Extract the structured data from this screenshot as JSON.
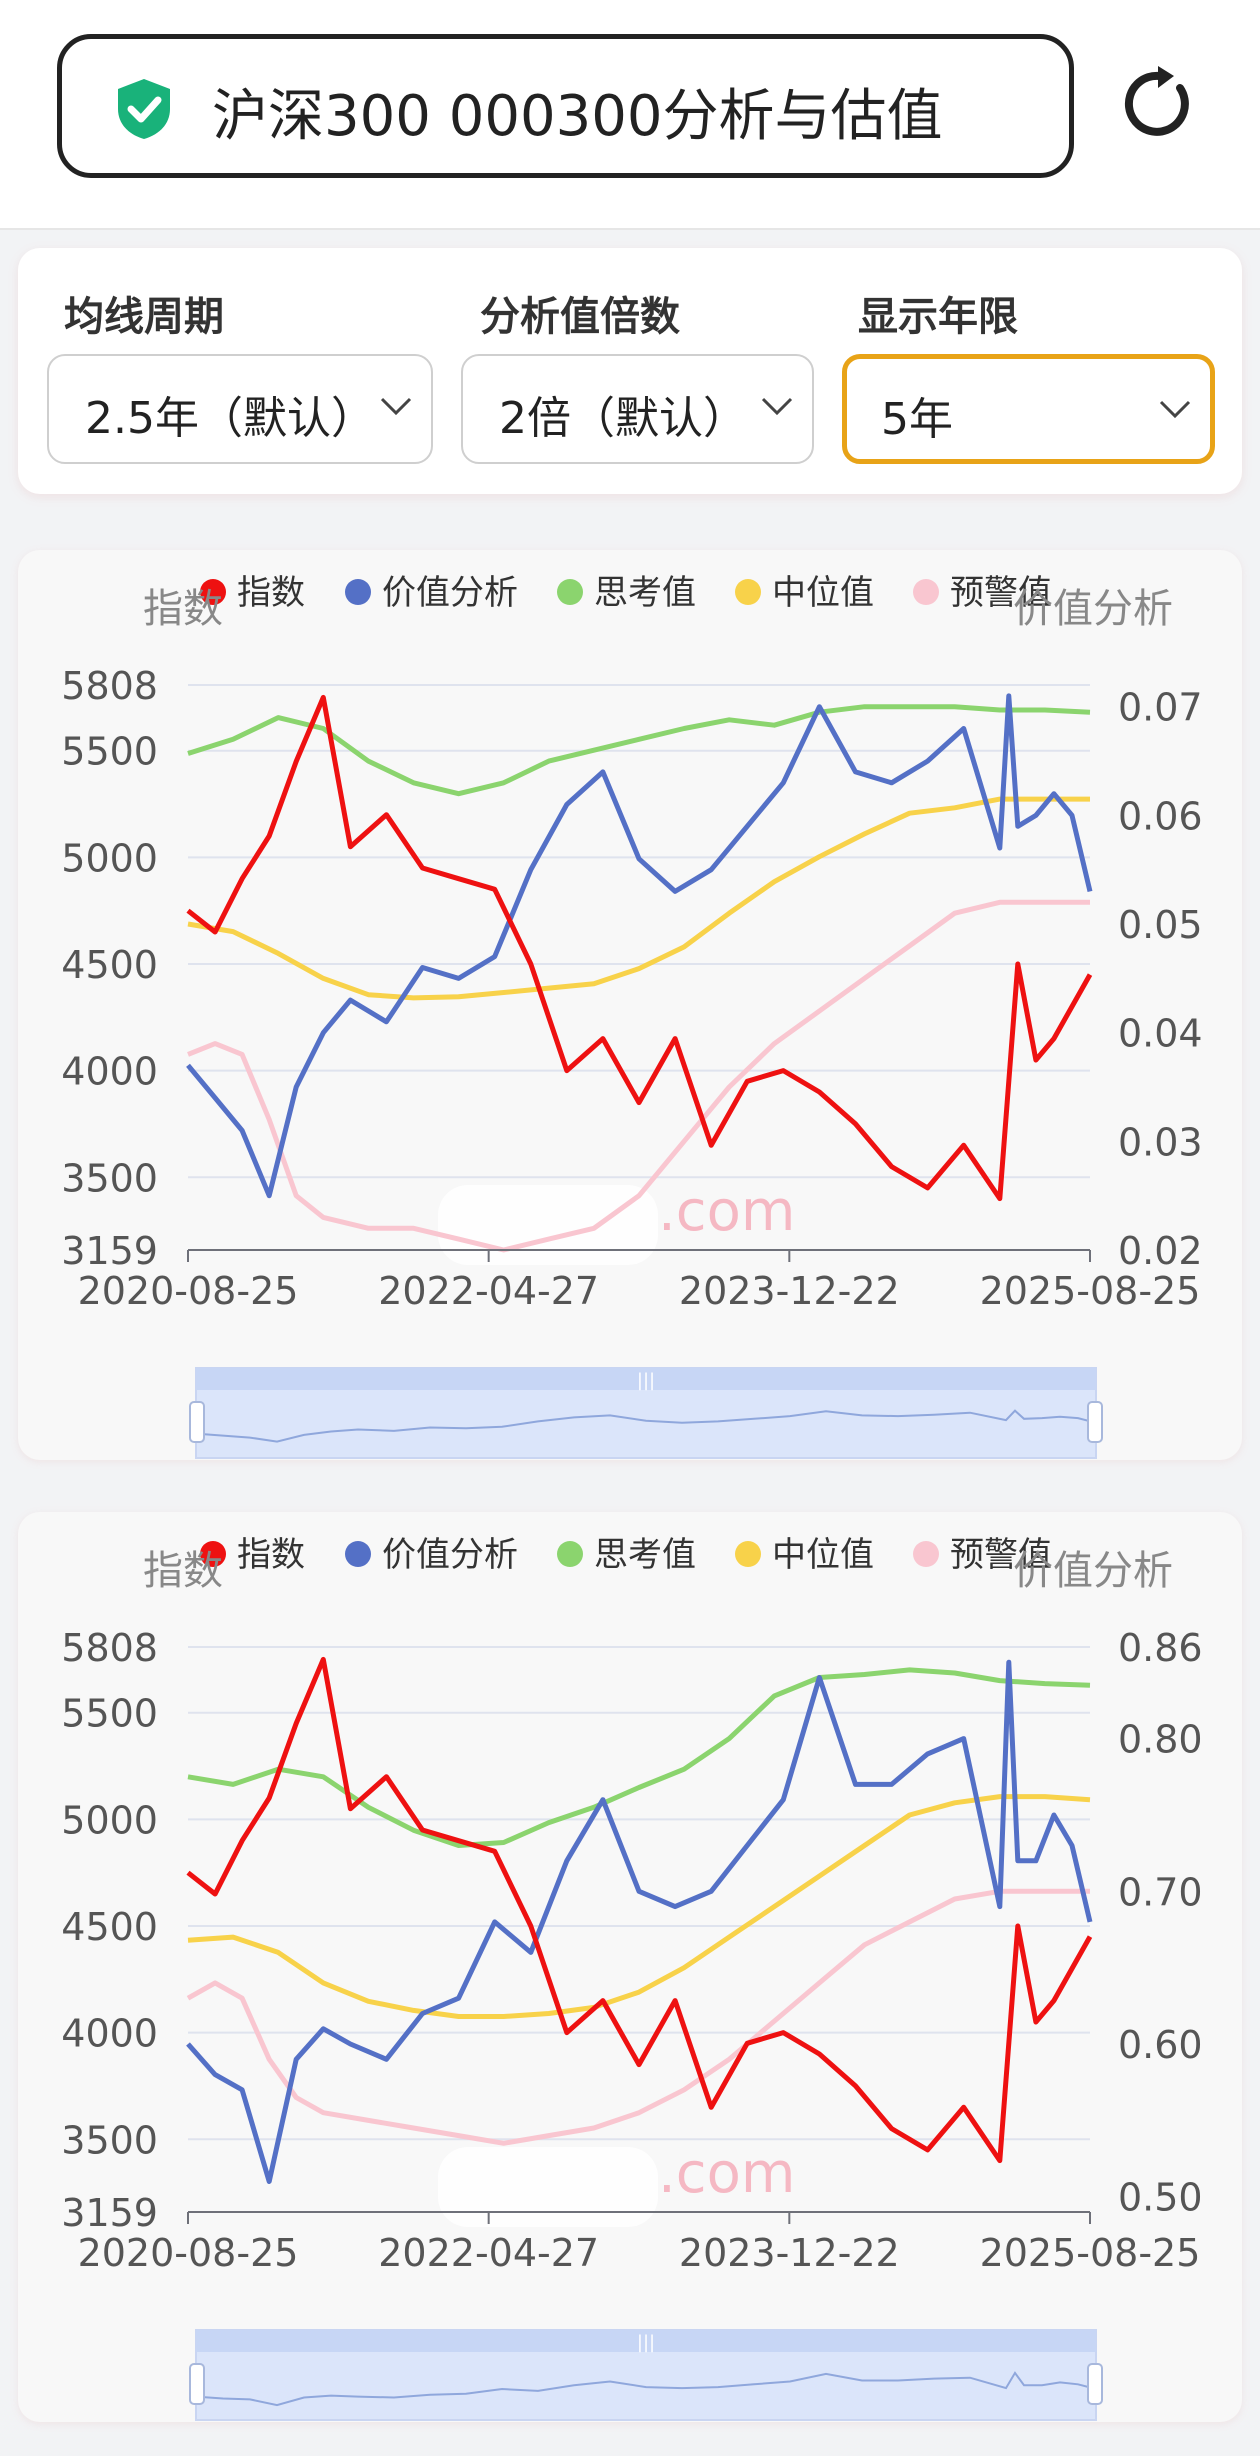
{
  "header": {
    "title": "沪深300 000300分析与估值",
    "icons": {
      "shield": "shield-check-icon",
      "refresh": "refresh-icon"
    },
    "colors": {
      "shield": "#19b27a"
    }
  },
  "filters": [
    {
      "label": "均线周期",
      "value": "2.5年（默认）",
      "active": false
    },
    {
      "label": "分析值倍数",
      "value": "2倍（默认）",
      "active": false
    },
    {
      "label": "显示年限",
      "value": "5年",
      "active": true
    }
  ],
  "accent_color": "#e8a317",
  "chart_data": [
    {
      "type": "line",
      "left_axis_title": "指数",
      "right_axis_title": "价值分析",
      "legend": [
        {
          "name": "指数",
          "color": "#ee1111"
        },
        {
          "name": "价值分析",
          "color": "#5470c6"
        },
        {
          "name": "思考值",
          "color": "#8bd46e"
        },
        {
          "name": "中位值",
          "color": "#f8d24a"
        },
        {
          "name": "预警值",
          "color": "#f9c6d0"
        }
      ],
      "left_ticks": [
        "5808",
        "5500",
        "5000",
        "4500",
        "4000",
        "3500",
        "3159"
      ],
      "right_ticks": [
        "0.07",
        "0.06",
        "0.05",
        "0.04",
        "0.03",
        "0.02"
      ],
      "ylim_left": [
        3159,
        5808
      ],
      "ylim_right": [
        0.02,
        0.072
      ],
      "x_ticks": [
        "2020-08-25",
        "2022-04-27",
        "2023-12-22",
        "2025-08-25"
      ],
      "watermark": ".com",
      "series": [
        {
          "name": "指数",
          "axis": "left",
          "x": [
            0,
            3,
            6,
            9,
            12,
            15,
            18,
            22,
            26,
            30,
            34,
            38,
            42,
            46,
            50,
            54,
            58,
            62,
            66,
            70,
            74,
            78,
            82,
            86,
            90,
            92,
            94,
            96,
            100
          ],
          "values": [
            4750,
            4650,
            4900,
            5100,
            5450,
            5750,
            5050,
            5200,
            4950,
            4900,
            4850,
            4500,
            4000,
            4150,
            3850,
            4150,
            3650,
            3950,
            4000,
            3900,
            3750,
            3550,
            3450,
            3650,
            3400,
            4500,
            4050,
            4150,
            4450
          ]
        },
        {
          "name": "价值分析",
          "axis": "right",
          "x": [
            0,
            3,
            6,
            9,
            12,
            15,
            18,
            22,
            26,
            30,
            34,
            38,
            42,
            46,
            50,
            54,
            58,
            62,
            66,
            70,
            74,
            78,
            82,
            86,
            90,
            91,
            92,
            94,
            96,
            98,
            100
          ],
          "values": [
            0.037,
            0.034,
            0.031,
            0.025,
            0.035,
            0.04,
            0.043,
            0.041,
            0.046,
            0.045,
            0.047,
            0.055,
            0.061,
            0.064,
            0.056,
            0.053,
            0.055,
            0.059,
            0.063,
            0.07,
            0.064,
            0.063,
            0.065,
            0.068,
            0.057,
            0.071,
            0.059,
            0.06,
            0.062,
            0.06,
            0.053
          ]
        },
        {
          "name": "思考值",
          "axis": "right",
          "x": [
            0,
            5,
            10,
            15,
            20,
            25,
            30,
            35,
            40,
            45,
            50,
            55,
            60,
            65,
            70,
            75,
            80,
            85,
            90,
            95,
            100
          ],
          "values": [
            0.0657,
            0.067,
            0.069,
            0.068,
            0.065,
            0.063,
            0.062,
            0.063,
            0.065,
            0.066,
            0.067,
            0.068,
            0.0688,
            0.0683,
            0.0695,
            0.07,
            0.07,
            0.07,
            0.0697,
            0.0697,
            0.0695
          ]
        },
        {
          "name": "中位值",
          "axis": "right",
          "x": [
            0,
            5,
            10,
            15,
            20,
            25,
            30,
            35,
            40,
            45,
            50,
            55,
            60,
            65,
            70,
            75,
            80,
            85,
            90,
            95,
            100
          ],
          "values": [
            0.05,
            0.0493,
            0.0473,
            0.045,
            0.0435,
            0.0432,
            0.0433,
            0.0437,
            0.0441,
            0.0445,
            0.0459,
            0.0479,
            0.051,
            0.0539,
            0.0562,
            0.0583,
            0.0602,
            0.0607,
            0.0615,
            0.0615,
            0.0615
          ]
        },
        {
          "name": "预警值",
          "axis": "right",
          "x": [
            0,
            3,
            6,
            9,
            12,
            15,
            20,
            25,
            30,
            35,
            40,
            45,
            50,
            55,
            60,
            65,
            70,
            75,
            80,
            85,
            90,
            95,
            100
          ],
          "values": [
            0.038,
            0.039,
            0.038,
            0.032,
            0.025,
            0.023,
            0.022,
            0.022,
            0.021,
            0.02,
            0.021,
            0.022,
            0.025,
            0.03,
            0.035,
            0.039,
            0.042,
            0.045,
            0.048,
            0.051,
            0.052,
            0.052,
            0.052
          ]
        }
      ]
    },
    {
      "type": "line",
      "left_axis_title": "指数",
      "right_axis_title": "价值分析",
      "legend": [
        {
          "name": "指数",
          "color": "#ee1111"
        },
        {
          "name": "价值分析",
          "color": "#5470c6"
        },
        {
          "name": "思考值",
          "color": "#8bd46e"
        },
        {
          "name": "中位值",
          "color": "#f8d24a"
        },
        {
          "name": "预警值",
          "color": "#f9c6d0"
        }
      ],
      "left_ticks": [
        "5808",
        "5500",
        "5000",
        "4500",
        "4000",
        "3500",
        "3159"
      ],
      "right_ticks": [
        "0.86",
        "0.80",
        "0.70",
        "0.60",
        "0.50"
      ],
      "ylim_left": [
        3159,
        5808
      ],
      "ylim_right": [
        0.49,
        0.86
      ],
      "x_ticks": [
        "2020-08-25",
        "2022-04-27",
        "2023-12-22",
        "2025-08-25"
      ],
      "watermark": ".com",
      "series": [
        {
          "name": "指数",
          "axis": "left",
          "x": [
            0,
            3,
            6,
            9,
            12,
            15,
            18,
            22,
            26,
            30,
            34,
            38,
            42,
            46,
            50,
            54,
            58,
            62,
            66,
            70,
            74,
            78,
            82,
            86,
            90,
            92,
            94,
            96,
            100
          ],
          "values": [
            4750,
            4650,
            4900,
            5100,
            5450,
            5750,
            5050,
            5200,
            4950,
            4900,
            4850,
            4500,
            4000,
            4150,
            3850,
            4150,
            3650,
            3950,
            4000,
            3900,
            3750,
            3550,
            3450,
            3650,
            3400,
            4500,
            4050,
            4150,
            4450
          ]
        },
        {
          "name": "价值分析",
          "axis": "right",
          "x": [
            0,
            3,
            6,
            9,
            12,
            15,
            18,
            22,
            26,
            30,
            34,
            38,
            42,
            46,
            50,
            54,
            58,
            62,
            66,
            70,
            74,
            78,
            82,
            86,
            90,
            91,
            92,
            94,
            96,
            98,
            100
          ],
          "values": [
            0.6,
            0.58,
            0.57,
            0.51,
            0.59,
            0.61,
            0.6,
            0.59,
            0.62,
            0.63,
            0.68,
            0.66,
            0.72,
            0.76,
            0.7,
            0.69,
            0.7,
            0.73,
            0.76,
            0.84,
            0.77,
            0.77,
            0.79,
            0.8,
            0.69,
            0.85,
            0.72,
            0.72,
            0.75,
            0.73,
            0.68
          ]
        },
        {
          "name": "思考值",
          "axis": "right",
          "x": [
            0,
            5,
            10,
            15,
            20,
            25,
            30,
            35,
            40,
            45,
            50,
            55,
            60,
            65,
            70,
            75,
            80,
            85,
            90,
            95,
            100
          ],
          "values": [
            0.775,
            0.77,
            0.78,
            0.775,
            0.755,
            0.74,
            0.73,
            0.732,
            0.745,
            0.755,
            0.768,
            0.78,
            0.8,
            0.828,
            0.84,
            0.842,
            0.845,
            0.843,
            0.838,
            0.836,
            0.835
          ]
        },
        {
          "name": "中位值",
          "axis": "right",
          "x": [
            0,
            5,
            10,
            15,
            20,
            25,
            30,
            35,
            40,
            45,
            50,
            55,
            60,
            65,
            70,
            75,
            80,
            85,
            90,
            95,
            100
          ],
          "values": [
            0.668,
            0.67,
            0.66,
            0.64,
            0.628,
            0.622,
            0.618,
            0.618,
            0.62,
            0.624,
            0.634,
            0.65,
            0.67,
            0.69,
            0.71,
            0.73,
            0.75,
            0.758,
            0.762,
            0.762,
            0.76
          ]
        },
        {
          "name": "预警值",
          "axis": "right",
          "x": [
            0,
            3,
            6,
            9,
            12,
            15,
            20,
            25,
            30,
            35,
            40,
            45,
            50,
            55,
            60,
            65,
            70,
            75,
            80,
            85,
            90,
            95,
            100
          ],
          "values": [
            0.63,
            0.64,
            0.63,
            0.59,
            0.565,
            0.555,
            0.55,
            0.545,
            0.54,
            0.535,
            0.54,
            0.545,
            0.555,
            0.57,
            0.59,
            0.615,
            0.64,
            0.665,
            0.68,
            0.695,
            0.7,
            0.7,
            0.7
          ]
        }
      ]
    }
  ]
}
